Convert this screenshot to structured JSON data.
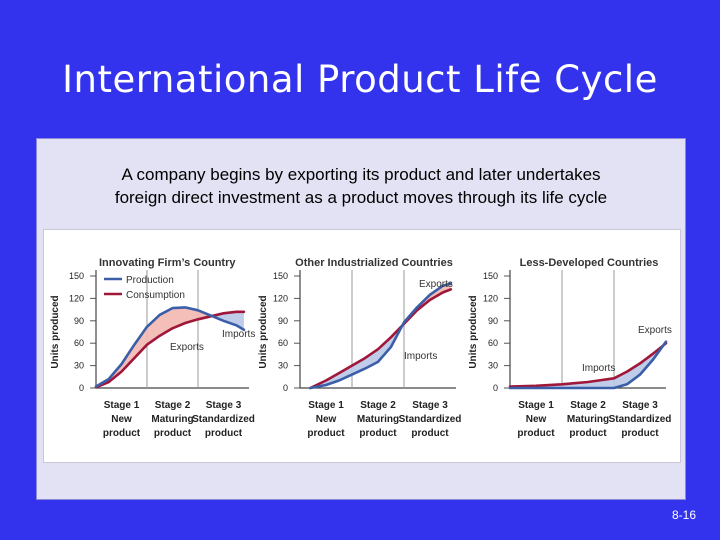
{
  "slide": {
    "title": "International Product Life Cycle",
    "caption_line1": "A company begins by exporting its product and later undertakes",
    "caption_line2": "foreign direct investment as a product moves through its life cycle",
    "page_number": "8-16"
  },
  "colors": {
    "background": "#3333ee",
    "production": "#3a5ea8",
    "consumption": "#a0173a",
    "export_fill": "#f2b8b0",
    "import_fill": "#b9c8e8"
  },
  "chart_data": [
    {
      "type": "line",
      "title": "Innovating Firm’s Country",
      "ylabel": "Units produced",
      "ylim": [
        0,
        150
      ],
      "yticks": [
        0,
        30,
        60,
        90,
        120,
        150
      ],
      "x": [
        0,
        1,
        2,
        3
      ],
      "stage_boundaries": [
        1,
        2
      ],
      "stage_labels": [
        "Stage 1",
        "Stage 2",
        "Stage 3"
      ],
      "stage_sublabels_a": [
        "New",
        "Maturing",
        "Standardized"
      ],
      "stage_sublabels_b": [
        "product",
        "product",
        "product"
      ],
      "legend": [
        "Production",
        "Consumption"
      ],
      "series": [
        {
          "name": "Production",
          "x": [
            0,
            0.25,
            0.5,
            0.75,
            1.0,
            1.25,
            1.5,
            1.75,
            2.0,
            2.25,
            2.5,
            2.75,
            2.9
          ],
          "values": [
            2,
            12,
            32,
            58,
            82,
            98,
            107,
            108,
            104,
            97,
            90,
            84,
            78
          ]
        },
        {
          "name": "Consumption",
          "x": [
            0,
            0.25,
            0.5,
            0.75,
            1.0,
            1.25,
            1.5,
            1.75,
            2.0,
            2.25,
            2.5,
            2.75,
            2.9
          ],
          "values": [
            1,
            8,
            22,
            40,
            58,
            70,
            80,
            87,
            92,
            96,
            100,
            102,
            102
          ]
        }
      ],
      "annotations": [
        "Exports",
        "Imports"
      ]
    },
    {
      "type": "line",
      "title": "Other Industrialized Countries",
      "ylabel": "Units produced",
      "ylim": [
        0,
        150
      ],
      "yticks": [
        0,
        30,
        60,
        90,
        120,
        150
      ],
      "x": [
        0,
        1,
        2,
        3
      ],
      "stage_boundaries": [
        1,
        2
      ],
      "stage_labels": [
        "Stage 1",
        "Stage 2",
        "Stage 3"
      ],
      "stage_sublabels_a": [
        "New",
        "Maturing",
        "Standardized"
      ],
      "stage_sublabels_b": [
        "product",
        "product",
        "product"
      ],
      "series": [
        {
          "name": "Production",
          "x": [
            0.2,
            0.5,
            0.75,
            1.0,
            1.25,
            1.5,
            1.75,
            2.0,
            2.25,
            2.5,
            2.75,
            2.9
          ],
          "values": [
            0,
            4,
            10,
            18,
            26,
            35,
            55,
            88,
            108,
            125,
            137,
            140
          ]
        },
        {
          "name": "Consumption",
          "x": [
            0.2,
            0.5,
            0.75,
            1.0,
            1.25,
            1.5,
            1.75,
            2.0,
            2.25,
            2.5,
            2.75,
            2.9
          ],
          "values": [
            0,
            10,
            20,
            30,
            40,
            52,
            68,
            86,
            104,
            118,
            128,
            132
          ]
        }
      ],
      "annotations": [
        "Exports",
        "Imports"
      ]
    },
    {
      "type": "line",
      "title": "Less-Developed Countries",
      "ylabel": "Units produced",
      "ylim": [
        0,
        150
      ],
      "yticks": [
        0,
        30,
        60,
        90,
        120,
        150
      ],
      "x": [
        0,
        1,
        2,
        3
      ],
      "stage_boundaries": [
        1,
        2
      ],
      "stage_labels": [
        "Stage 1",
        "Stage 2",
        "Stage 3"
      ],
      "stage_sublabels_a": [
        "New",
        "Maturing",
        "Standardized"
      ],
      "stage_sublabels_b": [
        "product",
        "product",
        "product"
      ],
      "series": [
        {
          "name": "Production",
          "x": [
            0,
            0.5,
            1.0,
            1.5,
            2.0,
            2.25,
            2.5,
            2.75,
            3.0
          ],
          "values": [
            0,
            0,
            0,
            0,
            0,
            5,
            18,
            38,
            62
          ]
        },
        {
          "name": "Consumption",
          "x": [
            0,
            0.5,
            1.0,
            1.5,
            2.0,
            2.25,
            2.5,
            2.75,
            3.0
          ],
          "values": [
            2,
            3,
            5,
            8,
            13,
            22,
            33,
            46,
            60
          ]
        }
      ],
      "annotations": [
        "Exports",
        "Imports"
      ]
    }
  ]
}
